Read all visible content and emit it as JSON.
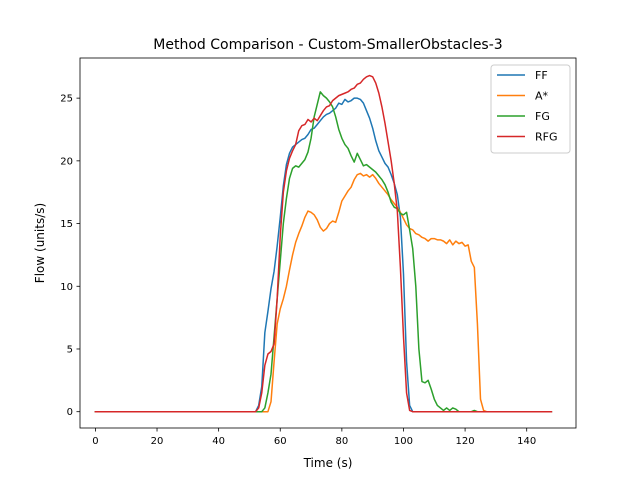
{
  "chart_data": {
    "type": "line",
    "title": "Method Comparison - Custom-SmallerObstacles-3",
    "xlabel": "Time (s)",
    "ylabel": "Flow (units/s)",
    "xlim": [
      -5,
      156
    ],
    "ylim": [
      -1.3,
      28.2
    ],
    "xticks": [
      0,
      20,
      40,
      60,
      80,
      100,
      120,
      140
    ],
    "yticks": [
      0,
      5,
      10,
      15,
      20,
      25
    ],
    "grid": false,
    "legend_position": "top-right",
    "series": [
      {
        "name": "FF",
        "color": "#1f77b4",
        "points": [
          [
            0,
            0
          ],
          [
            52,
            0
          ],
          [
            53,
            0.5
          ],
          [
            54,
            2
          ],
          [
            55,
            6.3
          ],
          [
            56,
            8
          ],
          [
            57,
            9.8
          ],
          [
            58,
            11.2
          ],
          [
            59,
            13.2
          ],
          [
            60,
            15.5
          ],
          [
            61,
            18
          ],
          [
            62,
            19.7
          ],
          [
            63,
            20.6
          ],
          [
            64,
            21.1
          ],
          [
            65,
            21.3
          ],
          [
            66,
            21.5
          ],
          [
            67,
            21.7
          ],
          [
            68,
            21.8
          ],
          [
            69,
            22.1
          ],
          [
            70,
            22.5
          ],
          [
            71,
            22.6
          ],
          [
            72,
            22.9
          ],
          [
            73,
            23.2
          ],
          [
            74,
            23.5
          ],
          [
            75,
            23.7
          ],
          [
            76,
            23.8
          ],
          [
            77,
            24
          ],
          [
            78,
            24.2
          ],
          [
            79,
            24.6
          ],
          [
            80,
            24.5
          ],
          [
            81,
            24.9
          ],
          [
            82,
            24.7
          ],
          [
            83,
            24.8
          ],
          [
            84,
            25
          ],
          [
            85,
            25
          ],
          [
            86,
            24.9
          ],
          [
            87,
            24.6
          ],
          [
            88,
            24
          ],
          [
            89,
            23.4
          ],
          [
            90,
            22.6
          ],
          [
            91,
            21.6
          ],
          [
            92,
            20.8
          ],
          [
            93,
            20.3
          ],
          [
            94,
            19.8
          ],
          [
            95,
            19.5
          ],
          [
            96,
            18.9
          ],
          [
            97,
            18.2
          ],
          [
            98,
            17.3
          ],
          [
            99,
            15.5
          ],
          [
            100,
            11
          ],
          [
            101,
            4
          ],
          [
            102,
            0.5
          ],
          [
            103,
            0
          ],
          [
            148,
            0
          ]
        ]
      },
      {
        "name": "A*",
        "color": "#ff7f0e",
        "points": [
          [
            0,
            0
          ],
          [
            56,
            0
          ],
          [
            57,
            0.8
          ],
          [
            58,
            4
          ],
          [
            59,
            7
          ],
          [
            60,
            8.2
          ],
          [
            61,
            9
          ],
          [
            62,
            10
          ],
          [
            63,
            11.3
          ],
          [
            64,
            12.5
          ],
          [
            65,
            13.5
          ],
          [
            66,
            14.2
          ],
          [
            67,
            14.8
          ],
          [
            68,
            15.5
          ],
          [
            69,
            16
          ],
          [
            70,
            15.9
          ],
          [
            71,
            15.7
          ],
          [
            72,
            15.3
          ],
          [
            73,
            14.7
          ],
          [
            74,
            14.4
          ],
          [
            75,
            14.6
          ],
          [
            76,
            15
          ],
          [
            77,
            15.2
          ],
          [
            78,
            15.1
          ],
          [
            79,
            15.9
          ],
          [
            80,
            16.8
          ],
          [
            81,
            17.2
          ],
          [
            82,
            17.6
          ],
          [
            83,
            17.9
          ],
          [
            84,
            18.5
          ],
          [
            85,
            18.9
          ],
          [
            86,
            19
          ],
          [
            87,
            18.8
          ],
          [
            88,
            18.9
          ],
          [
            89,
            18.7
          ],
          [
            90,
            18.9
          ],
          [
            91,
            18.6
          ],
          [
            92,
            18.2
          ],
          [
            93,
            17.9
          ],
          [
            94,
            17.6
          ],
          [
            95,
            17.3
          ],
          [
            96,
            16.9
          ],
          [
            97,
            16.6
          ],
          [
            98,
            16.3
          ],
          [
            99,
            15.9
          ],
          [
            100,
            15.4
          ],
          [
            101,
            14.9
          ],
          [
            102,
            14.6
          ],
          [
            103,
            14.5
          ],
          [
            104,
            14.2
          ],
          [
            105,
            14.1
          ],
          [
            106,
            13.9
          ],
          [
            107,
            13.8
          ],
          [
            108,
            13.6
          ],
          [
            109,
            13.8
          ],
          [
            110,
            13.8
          ],
          [
            111,
            13.7
          ],
          [
            112,
            13.7
          ],
          [
            113,
            13.6
          ],
          [
            114,
            13.4
          ],
          [
            115,
            13.7
          ],
          [
            116,
            13.3
          ],
          [
            117,
            13.6
          ],
          [
            118,
            13.4
          ],
          [
            119,
            13.5
          ],
          [
            120,
            13.2
          ],
          [
            121,
            13.3
          ],
          [
            122,
            12
          ],
          [
            123,
            11.5
          ],
          [
            124,
            7
          ],
          [
            125,
            1
          ],
          [
            126,
            0.1
          ],
          [
            127,
            0
          ],
          [
            148,
            0
          ]
        ]
      },
      {
        "name": "FG",
        "color": "#2ca02c",
        "points": [
          [
            0,
            0
          ],
          [
            54,
            0
          ],
          [
            55,
            0.3
          ],
          [
            56,
            1.5
          ],
          [
            57,
            3
          ],
          [
            58,
            6
          ],
          [
            59,
            9
          ],
          [
            60,
            12
          ],
          [
            61,
            15
          ],
          [
            62,
            17
          ],
          [
            63,
            18.6
          ],
          [
            64,
            19.4
          ],
          [
            65,
            19.6
          ],
          [
            66,
            19.5
          ],
          [
            67,
            19.8
          ],
          [
            68,
            20.1
          ],
          [
            69,
            20.7
          ],
          [
            70,
            21.8
          ],
          [
            71,
            23.5
          ],
          [
            72,
            24.5
          ],
          [
            73,
            25.5
          ],
          [
            74,
            25.2
          ],
          [
            75,
            25
          ],
          [
            76,
            24.7
          ],
          [
            77,
            24.3
          ],
          [
            78,
            23.5
          ],
          [
            79,
            22.5
          ],
          [
            80,
            21.8
          ],
          [
            81,
            21.3
          ],
          [
            82,
            21
          ],
          [
            83,
            20.4
          ],
          [
            84,
            19.9
          ],
          [
            85,
            20.6
          ],
          [
            86,
            20.1
          ],
          [
            87,
            19.6
          ],
          [
            88,
            19.7
          ],
          [
            89,
            19.5
          ],
          [
            90,
            19.3
          ],
          [
            91,
            19.1
          ],
          [
            92,
            18.8
          ],
          [
            93,
            18.5
          ],
          [
            94,
            18.1
          ],
          [
            95,
            17.5
          ],
          [
            96,
            16.7
          ],
          [
            97,
            16.3
          ],
          [
            98,
            16.2
          ],
          [
            99,
            15.8
          ],
          [
            100,
            15.7
          ],
          [
            101,
            15.9
          ],
          [
            102,
            14.5
          ],
          [
            103,
            13
          ],
          [
            104,
            10
          ],
          [
            105,
            5
          ],
          [
            106,
            2.4
          ],
          [
            107,
            2.3
          ],
          [
            108,
            2.5
          ],
          [
            109,
            1.8
          ],
          [
            110,
            1
          ],
          [
            111,
            0.5
          ],
          [
            112,
            0.3
          ],
          [
            113,
            0.1
          ],
          [
            114,
            0.3
          ],
          [
            115,
            0.1
          ],
          [
            116,
            0.3
          ],
          [
            117,
            0.2
          ],
          [
            118,
            0
          ],
          [
            122,
            0
          ],
          [
            123,
            0.1
          ],
          [
            124,
            0
          ],
          [
            148,
            0
          ]
        ]
      },
      {
        "name": "RFG",
        "color": "#d62728",
        "points": [
          [
            0,
            0
          ],
          [
            52,
            0
          ],
          [
            53,
            0.3
          ],
          [
            54,
            1.5
          ],
          [
            55,
            3.7
          ],
          [
            56,
            4.6
          ],
          [
            57,
            4.8
          ],
          [
            58,
            5.4
          ],
          [
            59,
            9
          ],
          [
            60,
            14
          ],
          [
            61,
            17.5
          ],
          [
            62,
            19.2
          ],
          [
            63,
            20.2
          ],
          [
            64,
            20.8
          ],
          [
            65,
            21.3
          ],
          [
            66,
            22.4
          ],
          [
            67,
            22.8
          ],
          [
            68,
            22.9
          ],
          [
            69,
            23.3
          ],
          [
            70,
            23.1
          ],
          [
            71,
            23.4
          ],
          [
            72,
            23.2
          ],
          [
            73,
            23.6
          ],
          [
            74,
            24
          ],
          [
            75,
            24.3
          ],
          [
            76,
            24.4
          ],
          [
            77,
            24.8
          ],
          [
            78,
            25
          ],
          [
            79,
            25.2
          ],
          [
            80,
            25.3
          ],
          [
            81,
            25.4
          ],
          [
            82,
            25.5
          ],
          [
            83,
            25.7
          ],
          [
            84,
            25.8
          ],
          [
            85,
            26.1
          ],
          [
            86,
            26.2
          ],
          [
            87,
            26.5
          ],
          [
            88,
            26.7
          ],
          [
            89,
            26.8
          ],
          [
            90,
            26.7
          ],
          [
            91,
            26.2
          ],
          [
            92,
            25.4
          ],
          [
            93,
            24.3
          ],
          [
            94,
            23
          ],
          [
            95,
            21.5
          ],
          [
            96,
            20
          ],
          [
            97,
            18.2
          ],
          [
            98,
            16
          ],
          [
            99,
            11.5
          ],
          [
            100,
            6
          ],
          [
            101,
            1.5
          ],
          [
            102,
            0.1
          ],
          [
            103,
            0
          ],
          [
            148,
            0
          ]
        ]
      }
    ]
  }
}
